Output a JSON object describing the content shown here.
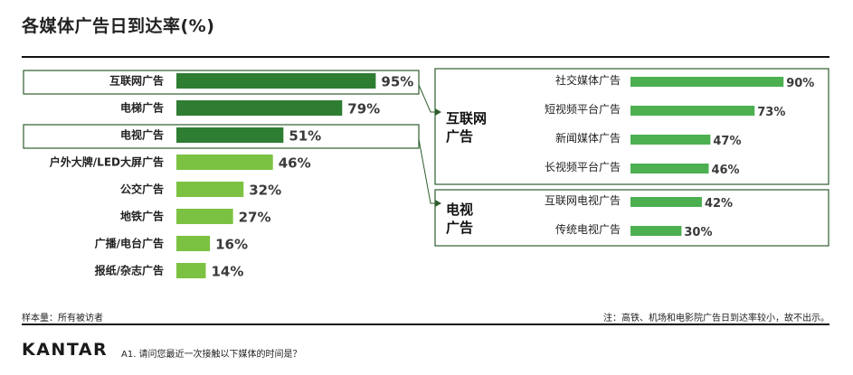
{
  "title": "各媒体广告日到达率(%)",
  "footnote_left": "样本量：所有被访者",
  "footnote_right": "注：高铁、机场和电影院广告日到达率较小，故不出示。",
  "brand": "KANTAR",
  "question": "A1. 请问您最近一次接触以下媒体的时间是？",
  "colors": {
    "dark_green": "#2e7d32",
    "light_green": "#7cc242",
    "mid_green": "#4caf50",
    "box_border": "#2e5e2e"
  },
  "chart_data": [
    {
      "type": "bar",
      "orientation": "horizontal",
      "title": "各媒体广告日到达率(%)",
      "categories": [
        "互联网广告",
        "电梯广告",
        "电视广告",
        "户外大牌/LED大屏广告",
        "公交广告",
        "地铁广告",
        "广播/电台广告",
        "报纸/杂志广告"
      ],
      "values": [
        95,
        79,
        51,
        46,
        32,
        27,
        16,
        14
      ],
      "value_labels": [
        "95%",
        "79%",
        "51%",
        "46%",
        "32%",
        "27%",
        "16%",
        "14%"
      ],
      "bar_colors": [
        "#2e7d32",
        "#2e7d32",
        "#2e7d32",
        "#7cc242",
        "#7cc242",
        "#7cc242",
        "#7cc242",
        "#7cc242"
      ],
      "xlim": [
        0,
        100
      ]
    },
    {
      "type": "bar",
      "orientation": "horizontal",
      "group": "互联网广告",
      "categories": [
        "社交媒体广告",
        "短视频平台广告",
        "新闻媒体广告",
        "长视频平台广告"
      ],
      "values": [
        90,
        73,
        47,
        46
      ],
      "value_labels": [
        "90%",
        "73%",
        "47%",
        "46%"
      ],
      "xlim": [
        0,
        100
      ]
    },
    {
      "type": "bar",
      "orientation": "horizontal",
      "group": "电视广告",
      "categories": [
        "互联网电视广告",
        "传统电视广告"
      ],
      "values": [
        42,
        30
      ],
      "value_labels": [
        "42%",
        "30%"
      ],
      "xlim": [
        0,
        100
      ]
    }
  ],
  "groups": {
    "internet_lines": [
      "互联网",
      "广告"
    ],
    "tv_lines": [
      "电视",
      "广告"
    ]
  }
}
